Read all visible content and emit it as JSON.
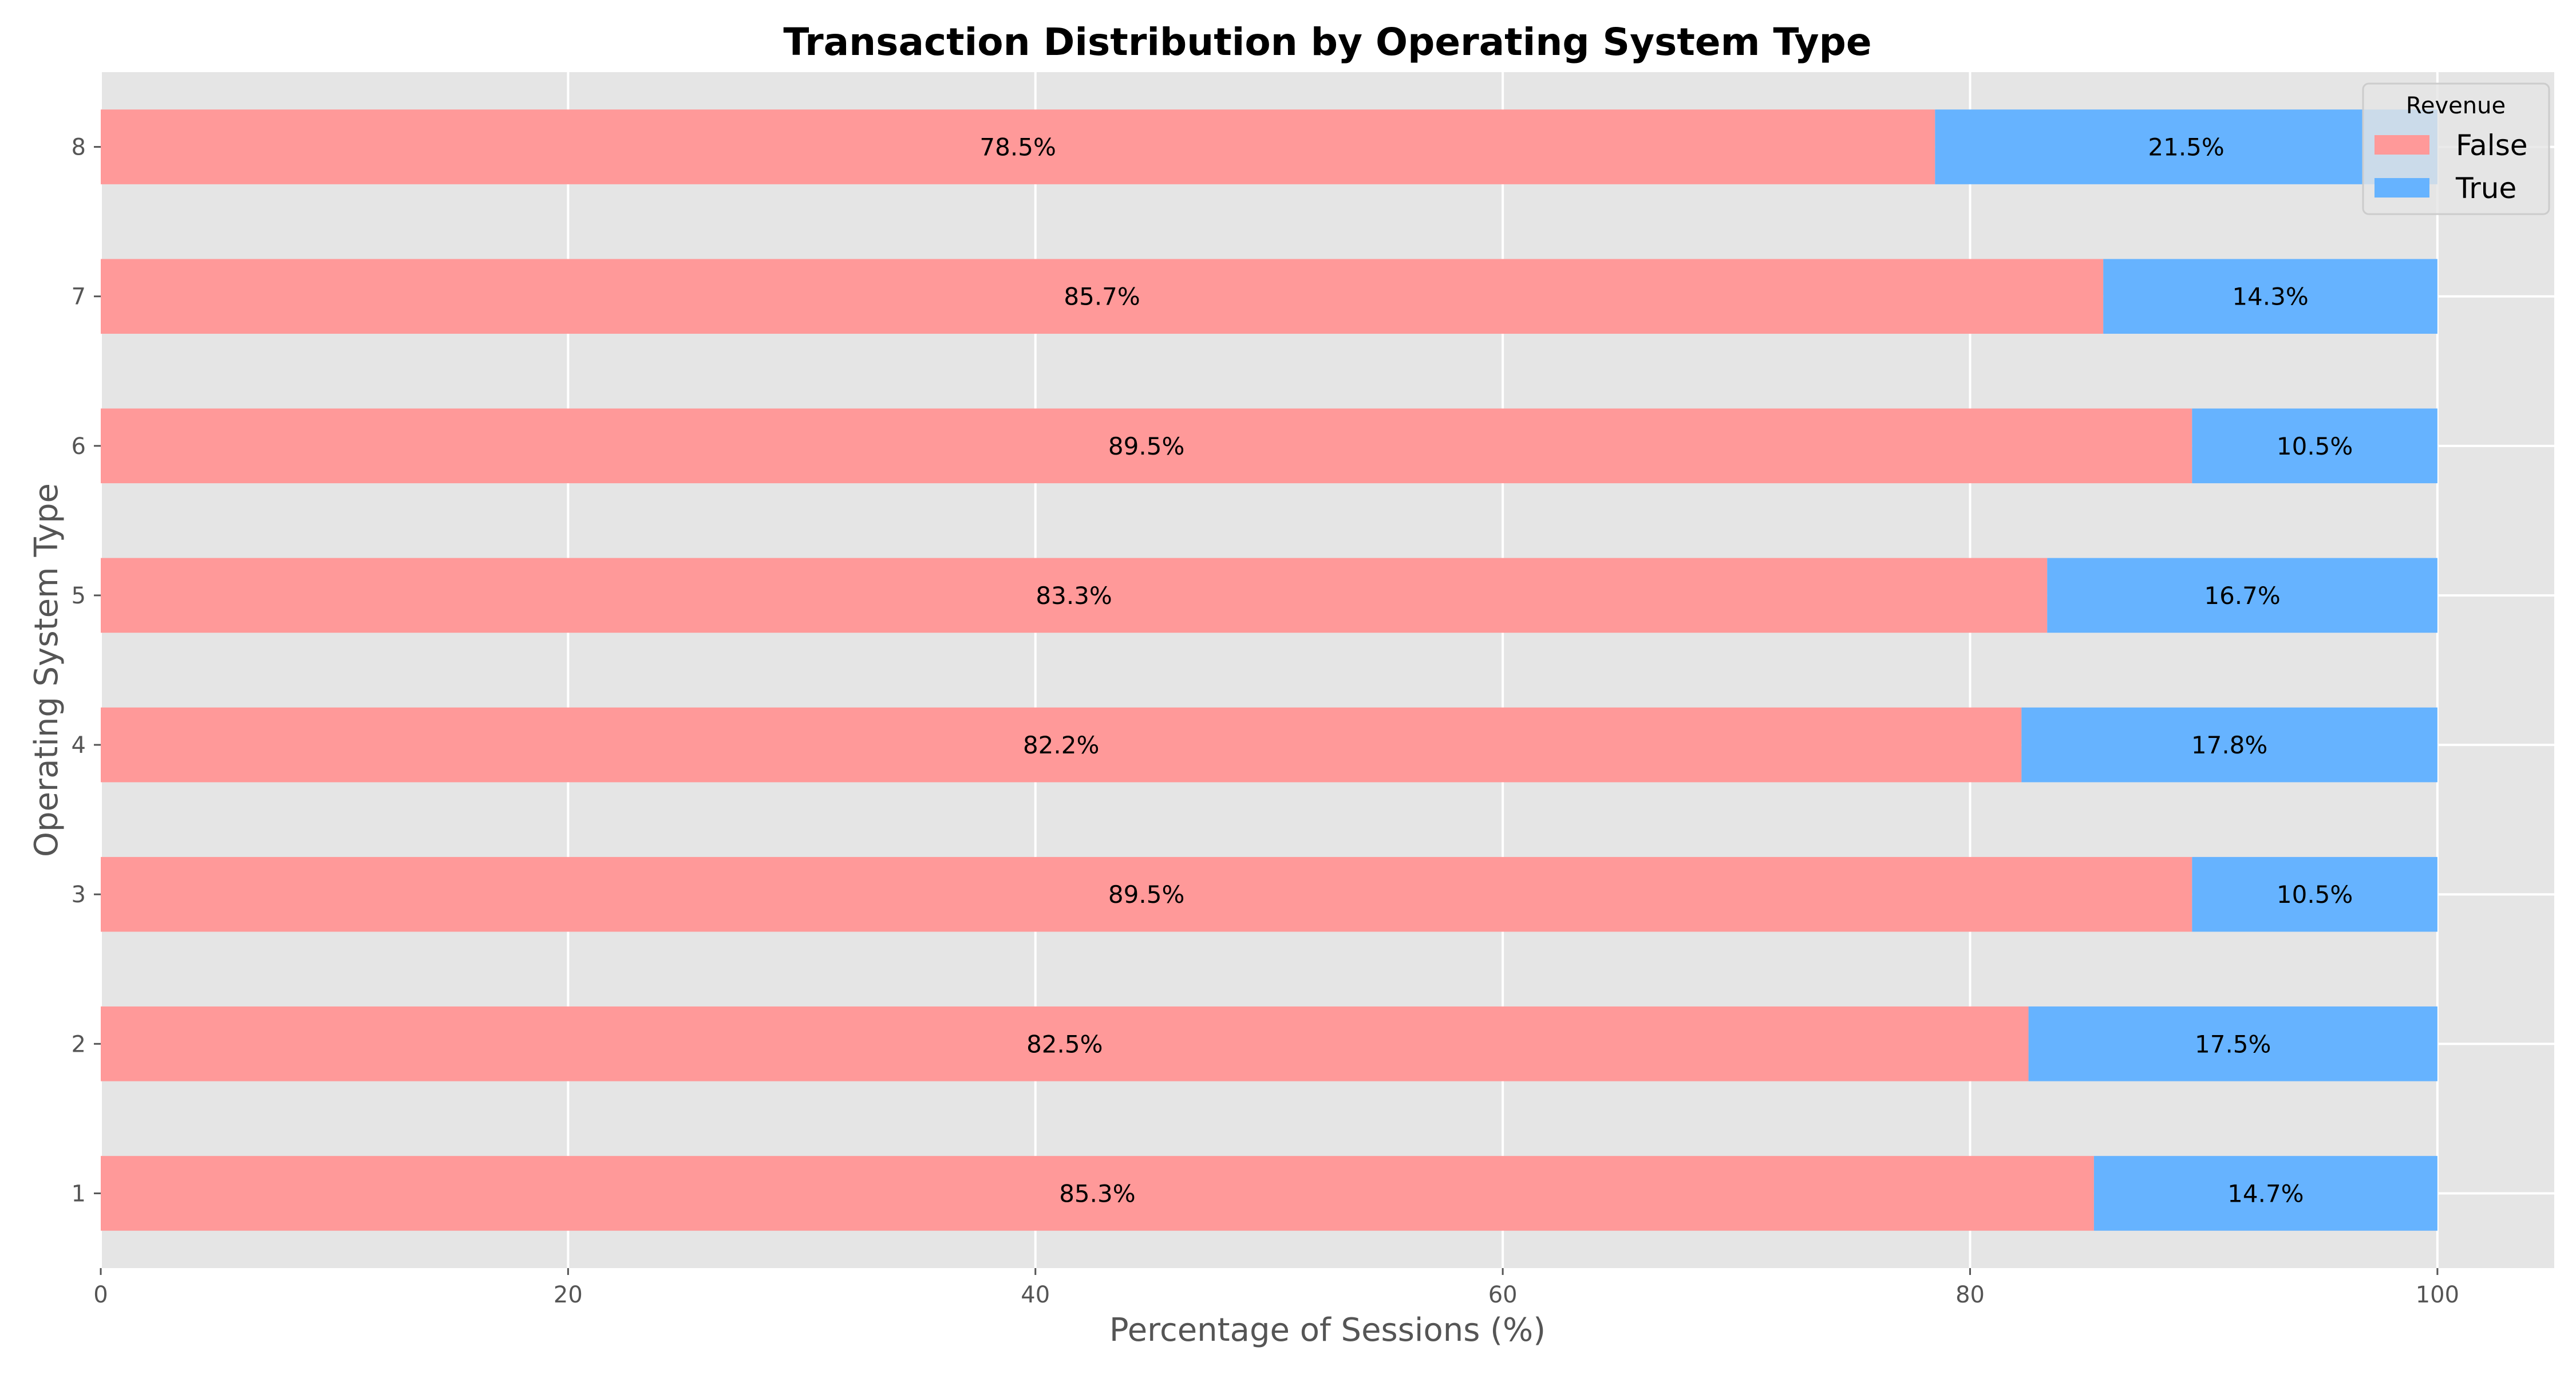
{
  "chart_data": {
    "type": "bar",
    "orientation": "horizontal",
    "stacked": true,
    "title": "Transaction Distribution by Operating System Type",
    "xlabel": "Percentage of Sessions (%)",
    "ylabel": "Operating System Type",
    "categories": [
      "1",
      "2",
      "3",
      "4",
      "5",
      "6",
      "7",
      "8"
    ],
    "xlim": [
      0,
      105
    ],
    "xticks": [
      0,
      20,
      40,
      60,
      80,
      100
    ],
    "grid": true,
    "legend": {
      "title": "Revenue",
      "placement": "top-right"
    },
    "series": [
      {
        "name": "False",
        "color": "#ff9999",
        "values": [
          85.3,
          82.5,
          89.5,
          82.2,
          83.3,
          89.5,
          85.7,
          78.5
        ],
        "labels": [
          "85.3%",
          "82.5%",
          "89.5%",
          "82.2%",
          "83.3%",
          "89.5%",
          "85.7%",
          "78.5%"
        ]
      },
      {
        "name": "True",
        "color": "#66b3ff",
        "values": [
          14.7,
          17.5,
          10.5,
          17.8,
          16.7,
          10.5,
          14.3,
          21.5
        ],
        "labels": [
          "14.7%",
          "17.5%",
          "10.5%",
          "17.8%",
          "16.7%",
          "10.5%",
          "14.3%",
          "21.5%"
        ]
      }
    ],
    "colors": {
      "plot_background": "#e5e5e5",
      "grid": "#ffffff"
    }
  }
}
